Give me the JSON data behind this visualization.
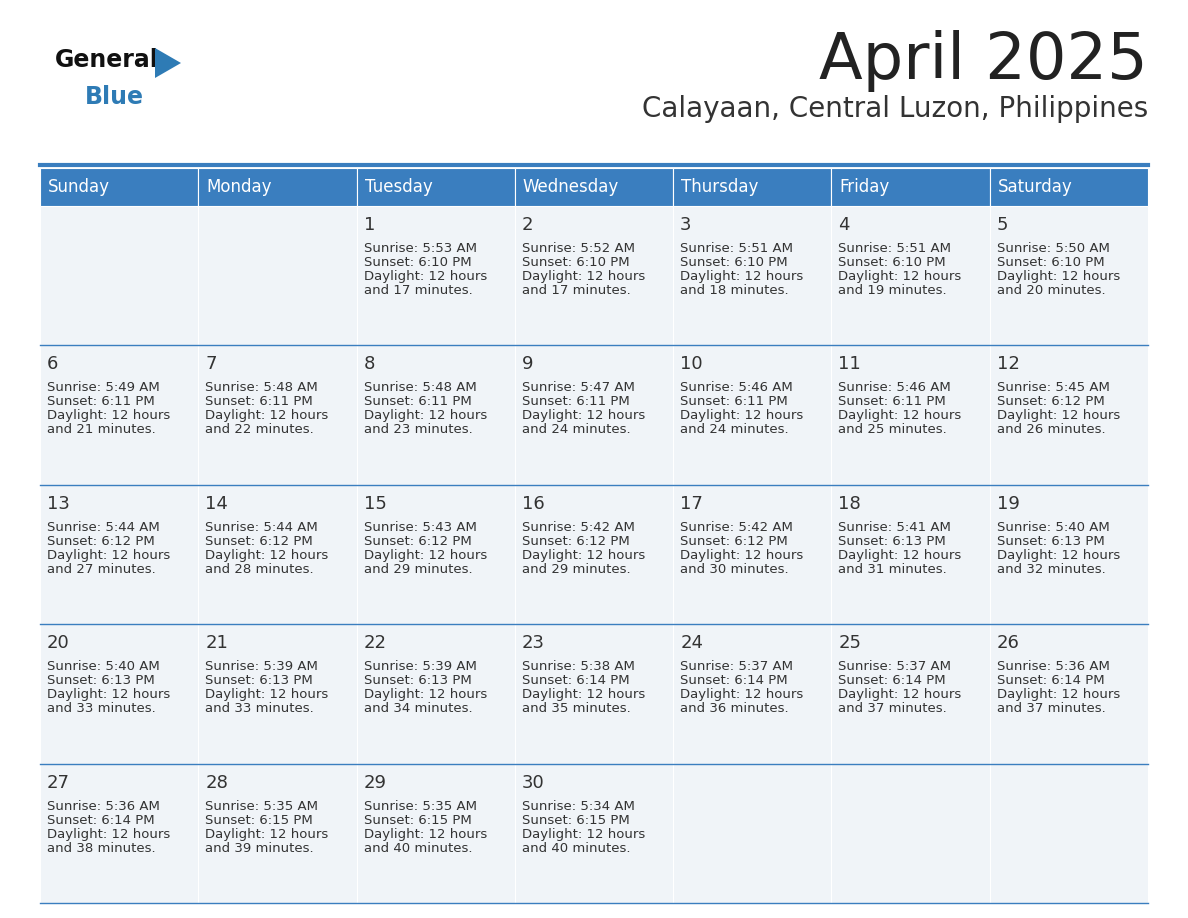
{
  "title": "April 2025",
  "subtitle": "Calayaan, Central Luzon, Philippines",
  "header_bg": "#3A7EBF",
  "header_text_color": "#FFFFFF",
  "cell_bg": "#F0F4F8",
  "separator_color": "#3A7EBF",
  "text_color": "#333333",
  "day_names": [
    "Sunday",
    "Monday",
    "Tuesday",
    "Wednesday",
    "Thursday",
    "Friday",
    "Saturday"
  ],
  "title_color": "#222222",
  "subtitle_color": "#333333",
  "days": [
    {
      "day": 1,
      "col": 2,
      "row": 0,
      "sunrise": "5:53 AM",
      "sunset": "6:10 PM",
      "daylight": "12 hours and 17 minutes."
    },
    {
      "day": 2,
      "col": 3,
      "row": 0,
      "sunrise": "5:52 AM",
      "sunset": "6:10 PM",
      "daylight": "12 hours and 17 minutes."
    },
    {
      "day": 3,
      "col": 4,
      "row": 0,
      "sunrise": "5:51 AM",
      "sunset": "6:10 PM",
      "daylight": "12 hours and 18 minutes."
    },
    {
      "day": 4,
      "col": 5,
      "row": 0,
      "sunrise": "5:51 AM",
      "sunset": "6:10 PM",
      "daylight": "12 hours and 19 minutes."
    },
    {
      "day": 5,
      "col": 6,
      "row": 0,
      "sunrise": "5:50 AM",
      "sunset": "6:10 PM",
      "daylight": "12 hours and 20 minutes."
    },
    {
      "day": 6,
      "col": 0,
      "row": 1,
      "sunrise": "5:49 AM",
      "sunset": "6:11 PM",
      "daylight": "12 hours and 21 minutes."
    },
    {
      "day": 7,
      "col": 1,
      "row": 1,
      "sunrise": "5:48 AM",
      "sunset": "6:11 PM",
      "daylight": "12 hours and 22 minutes."
    },
    {
      "day": 8,
      "col": 2,
      "row": 1,
      "sunrise": "5:48 AM",
      "sunset": "6:11 PM",
      "daylight": "12 hours and 23 minutes."
    },
    {
      "day": 9,
      "col": 3,
      "row": 1,
      "sunrise": "5:47 AM",
      "sunset": "6:11 PM",
      "daylight": "12 hours and 24 minutes."
    },
    {
      "day": 10,
      "col": 4,
      "row": 1,
      "sunrise": "5:46 AM",
      "sunset": "6:11 PM",
      "daylight": "12 hours and 24 minutes."
    },
    {
      "day": 11,
      "col": 5,
      "row": 1,
      "sunrise": "5:46 AM",
      "sunset": "6:11 PM",
      "daylight": "12 hours and 25 minutes."
    },
    {
      "day": 12,
      "col": 6,
      "row": 1,
      "sunrise": "5:45 AM",
      "sunset": "6:12 PM",
      "daylight": "12 hours and 26 minutes."
    },
    {
      "day": 13,
      "col": 0,
      "row": 2,
      "sunrise": "5:44 AM",
      "sunset": "6:12 PM",
      "daylight": "12 hours and 27 minutes."
    },
    {
      "day": 14,
      "col": 1,
      "row": 2,
      "sunrise": "5:44 AM",
      "sunset": "6:12 PM",
      "daylight": "12 hours and 28 minutes."
    },
    {
      "day": 15,
      "col": 2,
      "row": 2,
      "sunrise": "5:43 AM",
      "sunset": "6:12 PM",
      "daylight": "12 hours and 29 minutes."
    },
    {
      "day": 16,
      "col": 3,
      "row": 2,
      "sunrise": "5:42 AM",
      "sunset": "6:12 PM",
      "daylight": "12 hours and 29 minutes."
    },
    {
      "day": 17,
      "col": 4,
      "row": 2,
      "sunrise": "5:42 AM",
      "sunset": "6:12 PM",
      "daylight": "12 hours and 30 minutes."
    },
    {
      "day": 18,
      "col": 5,
      "row": 2,
      "sunrise": "5:41 AM",
      "sunset": "6:13 PM",
      "daylight": "12 hours and 31 minutes."
    },
    {
      "day": 19,
      "col": 6,
      "row": 2,
      "sunrise": "5:40 AM",
      "sunset": "6:13 PM",
      "daylight": "12 hours and 32 minutes."
    },
    {
      "day": 20,
      "col": 0,
      "row": 3,
      "sunrise": "5:40 AM",
      "sunset": "6:13 PM",
      "daylight": "12 hours and 33 minutes."
    },
    {
      "day": 21,
      "col": 1,
      "row": 3,
      "sunrise": "5:39 AM",
      "sunset": "6:13 PM",
      "daylight": "12 hours and 33 minutes."
    },
    {
      "day": 22,
      "col": 2,
      "row": 3,
      "sunrise": "5:39 AM",
      "sunset": "6:13 PM",
      "daylight": "12 hours and 34 minutes."
    },
    {
      "day": 23,
      "col": 3,
      "row": 3,
      "sunrise": "5:38 AM",
      "sunset": "6:14 PM",
      "daylight": "12 hours and 35 minutes."
    },
    {
      "day": 24,
      "col": 4,
      "row": 3,
      "sunrise": "5:37 AM",
      "sunset": "6:14 PM",
      "daylight": "12 hours and 36 minutes."
    },
    {
      "day": 25,
      "col": 5,
      "row": 3,
      "sunrise": "5:37 AM",
      "sunset": "6:14 PM",
      "daylight": "12 hours and 37 minutes."
    },
    {
      "day": 26,
      "col": 6,
      "row": 3,
      "sunrise": "5:36 AM",
      "sunset": "6:14 PM",
      "daylight": "12 hours and 37 minutes."
    },
    {
      "day": 27,
      "col": 0,
      "row": 4,
      "sunrise": "5:36 AM",
      "sunset": "6:14 PM",
      "daylight": "12 hours and 38 minutes."
    },
    {
      "day": 28,
      "col": 1,
      "row": 4,
      "sunrise": "5:35 AM",
      "sunset": "6:15 PM",
      "daylight": "12 hours and 39 minutes."
    },
    {
      "day": 29,
      "col": 2,
      "row": 4,
      "sunrise": "5:35 AM",
      "sunset": "6:15 PM",
      "daylight": "12 hours and 40 minutes."
    },
    {
      "day": 30,
      "col": 3,
      "row": 4,
      "sunrise": "5:34 AM",
      "sunset": "6:15 PM",
      "daylight": "12 hours and 40 minutes."
    }
  ],
  "logo_text1": "General",
  "logo_text2": "Blue",
  "logo_triangle_color": "#2E7BB5",
  "figwidth": 11.88,
  "figheight": 9.18,
  "dpi": 100
}
